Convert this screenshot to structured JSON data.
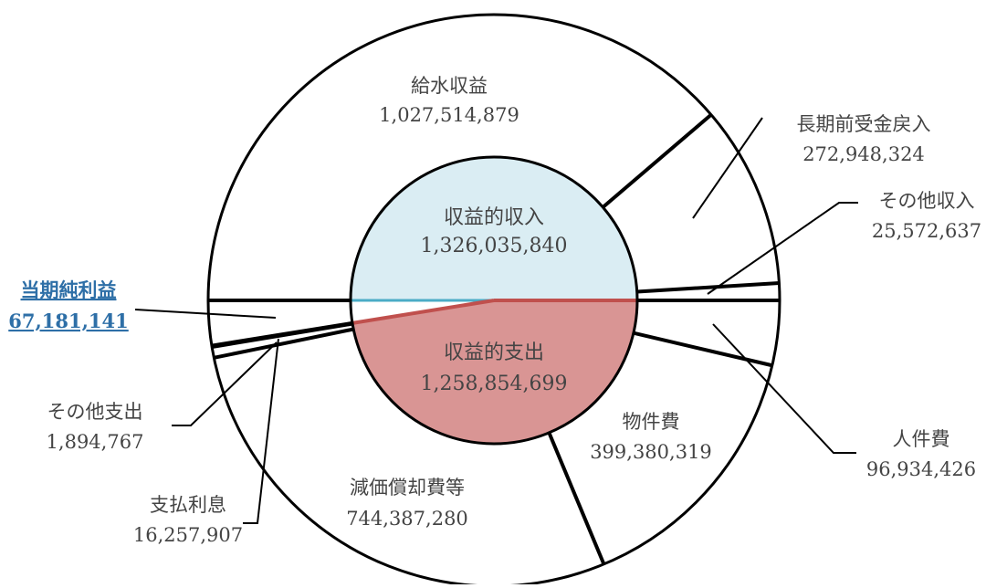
{
  "chart_data": {
    "type": "pie",
    "outer": {
      "segments": [
        {
          "label": "給水収益",
          "value": "1,027,514,879",
          "amount": 1027514879,
          "side": "income"
        },
        {
          "label": "長期前受金戻入",
          "value": "272,948,324",
          "amount": 272948324,
          "side": "income"
        },
        {
          "label": "その他収入",
          "value": "25,572,637",
          "amount": 25572637,
          "side": "income"
        },
        {
          "label": "人件費",
          "value": "96,934,426",
          "amount": 96934426,
          "side": "expense"
        },
        {
          "label": "物件費",
          "value": "399,380,319",
          "amount": 399380319,
          "side": "expense"
        },
        {
          "label": "減価償却費等",
          "value": "744,387,280",
          "amount": 744387280,
          "side": "expense"
        },
        {
          "label": "支払利息",
          "value": "16,257,907",
          "amount": 16257907,
          "side": "expense"
        },
        {
          "label": "その他支出",
          "value": "1,894,767",
          "amount": 1894767,
          "side": "expense"
        },
        {
          "label": "当期純利益",
          "value": "67,181,141",
          "amount": 67181141,
          "side": "expense",
          "highlight": true
        }
      ]
    },
    "inner": {
      "income": {
        "label": "収益的収入",
        "value": "1,326,035,840",
        "amount": 1326035840,
        "color": "#daedf3",
        "edge_color": "#4bacc6"
      },
      "expense": {
        "label": "収益的支出",
        "value": "1,258,854,699",
        "amount": 1258854699,
        "color": "#d99594",
        "edge_color": "#c0504d"
      }
    },
    "highlight_color": "#2e6fa7"
  }
}
